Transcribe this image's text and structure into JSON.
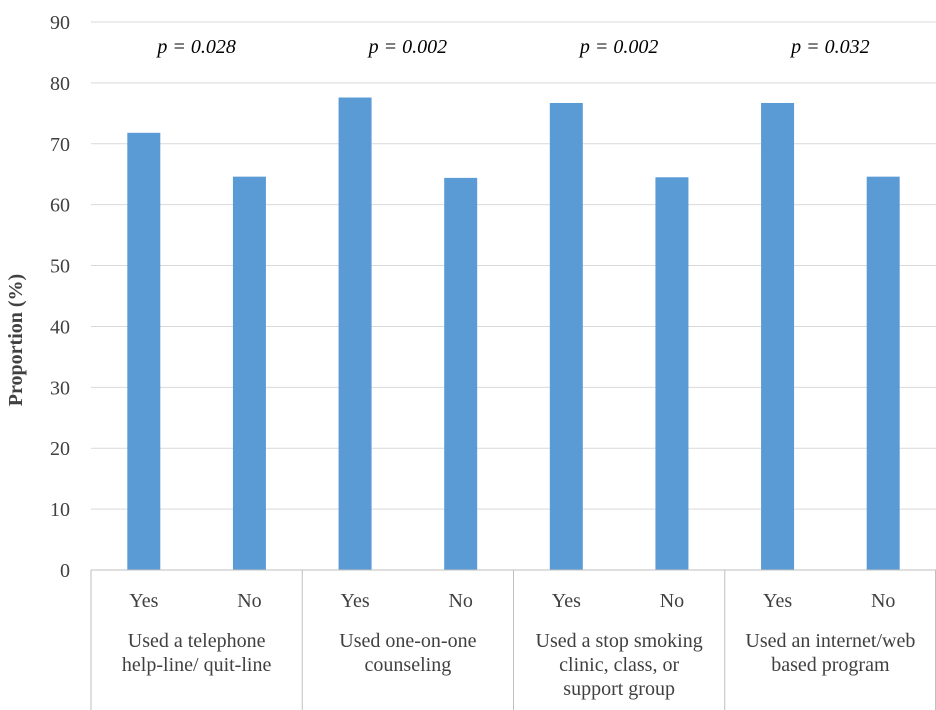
{
  "chart_data": {
    "type": "bar",
    "title": "",
    "ylabel": "Proportion (%)",
    "xlabel": "",
    "ylim": [
      0,
      90
    ],
    "yticks": [
      "0",
      "10",
      "20",
      "30",
      "40",
      "50",
      "60",
      "70",
      "80",
      "90"
    ],
    "grid": true,
    "groups": [
      {
        "label_lines": [
          "Used a telephone",
          "help-line/ quit-line"
        ],
        "p_value": "p = 0.028",
        "categories": [
          "Yes",
          "No"
        ],
        "values": [
          71.8,
          64.6
        ]
      },
      {
        "label_lines": [
          "Used one-on-one",
          "counseling"
        ],
        "p_value": "p = 0.002",
        "categories": [
          "Yes",
          "No"
        ],
        "values": [
          77.6,
          64.4
        ]
      },
      {
        "label_lines": [
          "Used a stop smoking",
          "clinic, class, or",
          "support group"
        ],
        "p_value": "p = 0.002",
        "categories": [
          "Yes",
          "No"
        ],
        "values": [
          76.7,
          64.5
        ]
      },
      {
        "label_lines": [
          "Used an internet/web",
          "based program"
        ],
        "p_value": "p = 0.032",
        "categories": [
          "Yes",
          "No"
        ],
        "values": [
          76.7,
          64.6
        ]
      }
    ],
    "colors": {
      "bar": "#5B9BD5",
      "grid": "#D9D9D9",
      "axis": "#BFBFBF"
    }
  }
}
